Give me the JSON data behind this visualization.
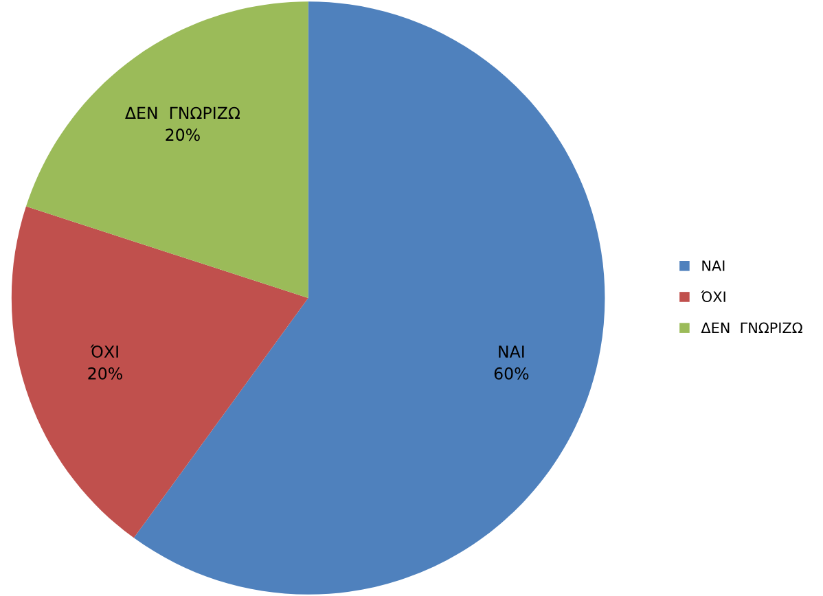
{
  "chart_data": {
    "type": "pie",
    "categories": [
      "ΝΑΙ",
      "ΌΧΙ",
      "ΔΕΝ  ΓΝΩΡΙΖΩ"
    ],
    "values": [
      60,
      20,
      20
    ],
    "colors": [
      "#4f81bd",
      "#c0504d",
      "#9bbb59"
    ],
    "value_labels": [
      "60%",
      "20%",
      "20%"
    ],
    "legend": "right"
  }
}
